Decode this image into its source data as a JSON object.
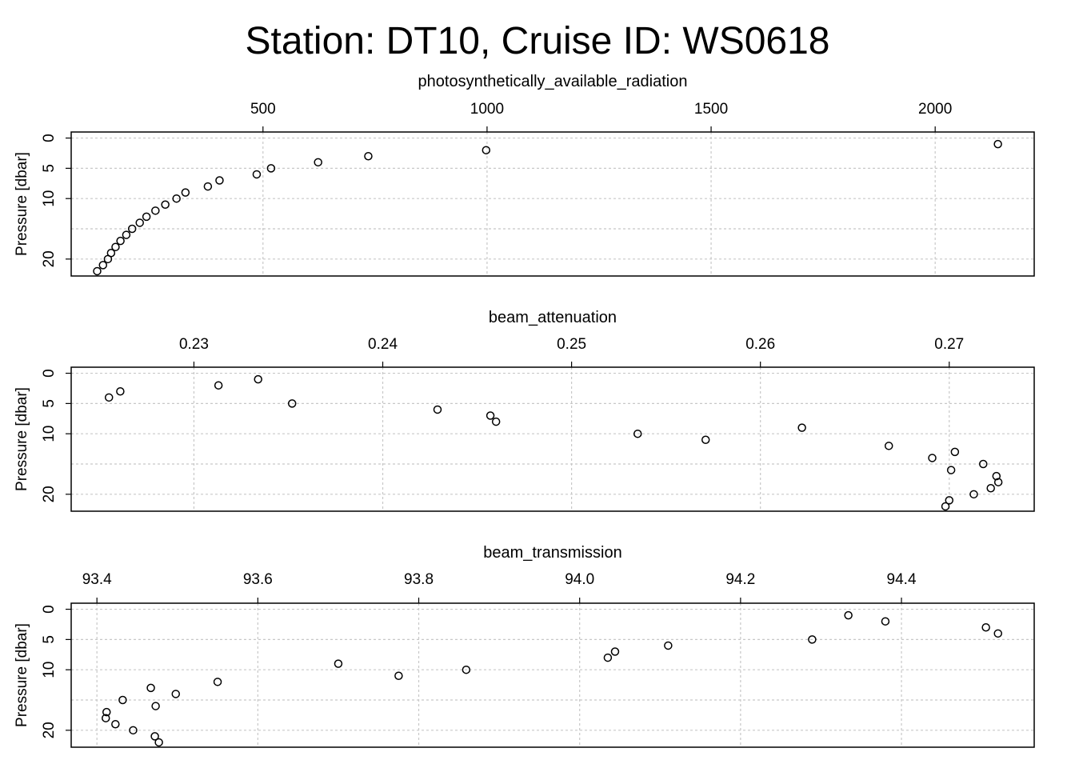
{
  "title": "Station: DT10, Cruise ID: WS0618",
  "chart_data": [
    {
      "type": "scatter",
      "title": "photosynthetically_available_radiation",
      "xlabel": "photosynthetically_available_radiation",
      "ylabel": "Pressure [dbar]",
      "x_ticks": [
        "500",
        "1000",
        "1500",
        "2000"
      ],
      "x_tick_values": [
        500,
        1000,
        1500,
        2000
      ],
      "y_ticks": [
        "0",
        "5",
        "10",
        "20"
      ],
      "y_tick_values": [
        0,
        5,
        10,
        20
      ],
      "y_gridlines": [
        0,
        5,
        10,
        15,
        20
      ],
      "xlim": [
        72,
        2221
      ],
      "ylim": [
        22.8,
        -1
      ],
      "y_reversed": true,
      "grid": true,
      "points": [
        {
          "x": 2140,
          "y": 1
        },
        {
          "x": 998,
          "y": 2
        },
        {
          "x": 735,
          "y": 3
        },
        {
          "x": 623,
          "y": 4
        },
        {
          "x": 518,
          "y": 5
        },
        {
          "x": 486,
          "y": 6
        },
        {
          "x": 403,
          "y": 7
        },
        {
          "x": 377,
          "y": 8
        },
        {
          "x": 327,
          "y": 9
        },
        {
          "x": 307,
          "y": 10
        },
        {
          "x": 282,
          "y": 11
        },
        {
          "x": 260,
          "y": 12
        },
        {
          "x": 240,
          "y": 13
        },
        {
          "x": 225,
          "y": 14
        },
        {
          "x": 208,
          "y": 15
        },
        {
          "x": 195,
          "y": 16
        },
        {
          "x": 182,
          "y": 17
        },
        {
          "x": 171,
          "y": 18
        },
        {
          "x": 161,
          "y": 19
        },
        {
          "x": 154,
          "y": 20
        },
        {
          "x": 143,
          "y": 21
        },
        {
          "x": 130,
          "y": 22
        }
      ]
    },
    {
      "type": "scatter",
      "title": "beam_attenuation",
      "xlabel": "beam_attenuation",
      "ylabel": "Pressure [dbar]",
      "x_ticks": [
        "0.23",
        "0.24",
        "0.25",
        "0.26",
        "0.27"
      ],
      "x_tick_values": [
        0.23,
        0.24,
        0.25,
        0.26,
        0.27
      ],
      "y_ticks": [
        "0",
        "5",
        "10",
        "20"
      ],
      "y_tick_values": [
        0,
        5,
        10,
        20
      ],
      "y_gridlines": [
        0,
        5,
        10,
        15,
        20
      ],
      "xlim": [
        0.2235,
        0.2745
      ],
      "ylim": [
        22.8,
        -1
      ],
      "y_reversed": true,
      "grid": true,
      "points": [
        {
          "x": 0.2334,
          "y": 1
        },
        {
          "x": 0.2313,
          "y": 2
        },
        {
          "x": 0.2261,
          "y": 3
        },
        {
          "x": 0.2255,
          "y": 4
        },
        {
          "x": 0.2352,
          "y": 5
        },
        {
          "x": 0.2429,
          "y": 6
        },
        {
          "x": 0.2457,
          "y": 7
        },
        {
          "x": 0.246,
          "y": 8
        },
        {
          "x": 0.2622,
          "y": 9
        },
        {
          "x": 0.2535,
          "y": 10
        },
        {
          "x": 0.2571,
          "y": 11
        },
        {
          "x": 0.2668,
          "y": 12
        },
        {
          "x": 0.2703,
          "y": 13
        },
        {
          "x": 0.2691,
          "y": 14
        },
        {
          "x": 0.2718,
          "y": 15
        },
        {
          "x": 0.2701,
          "y": 16
        },
        {
          "x": 0.2725,
          "y": 17
        },
        {
          "x": 0.2726,
          "y": 18
        },
        {
          "x": 0.2722,
          "y": 19
        },
        {
          "x": 0.2713,
          "y": 20
        },
        {
          "x": 0.27,
          "y": 21
        },
        {
          "x": 0.2698,
          "y": 22
        }
      ]
    },
    {
      "type": "scatter",
      "title": "beam_transmission",
      "xlabel": "beam_transmission",
      "ylabel": "Pressure [dbar]",
      "x_ticks": [
        "93.4",
        "93.6",
        "93.8",
        "94.0",
        "94.2",
        "94.4"
      ],
      "x_tick_values": [
        93.4,
        93.6,
        93.8,
        94.0,
        94.2,
        94.4
      ],
      "y_ticks": [
        "0",
        "5",
        "10",
        "20"
      ],
      "y_tick_values": [
        0,
        5,
        10,
        20
      ],
      "y_gridlines": [
        0,
        5,
        10,
        15,
        20
      ],
      "xlim": [
        93.368,
        94.565
      ],
      "ylim": [
        22.8,
        -1
      ],
      "y_reversed": true,
      "grid": true,
      "points": [
        {
          "x": 94.334,
          "y": 1
        },
        {
          "x": 94.38,
          "y": 2
        },
        {
          "x": 94.505,
          "y": 3
        },
        {
          "x": 94.52,
          "y": 4
        },
        {
          "x": 94.289,
          "y": 5
        },
        {
          "x": 94.11,
          "y": 6
        },
        {
          "x": 94.044,
          "y": 7
        },
        {
          "x": 94.035,
          "y": 8
        },
        {
          "x": 93.7,
          "y": 9
        },
        {
          "x": 93.859,
          "y": 10
        },
        {
          "x": 93.775,
          "y": 11
        },
        {
          "x": 93.55,
          "y": 12
        },
        {
          "x": 93.467,
          "y": 13
        },
        {
          "x": 93.498,
          "y": 14
        },
        {
          "x": 93.432,
          "y": 15
        },
        {
          "x": 93.473,
          "y": 16
        },
        {
          "x": 93.412,
          "y": 17
        },
        {
          "x": 93.411,
          "y": 18
        },
        {
          "x": 93.423,
          "y": 19
        },
        {
          "x": 93.445,
          "y": 20
        },
        {
          "x": 93.472,
          "y": 21
        },
        {
          "x": 93.477,
          "y": 22
        }
      ]
    }
  ]
}
